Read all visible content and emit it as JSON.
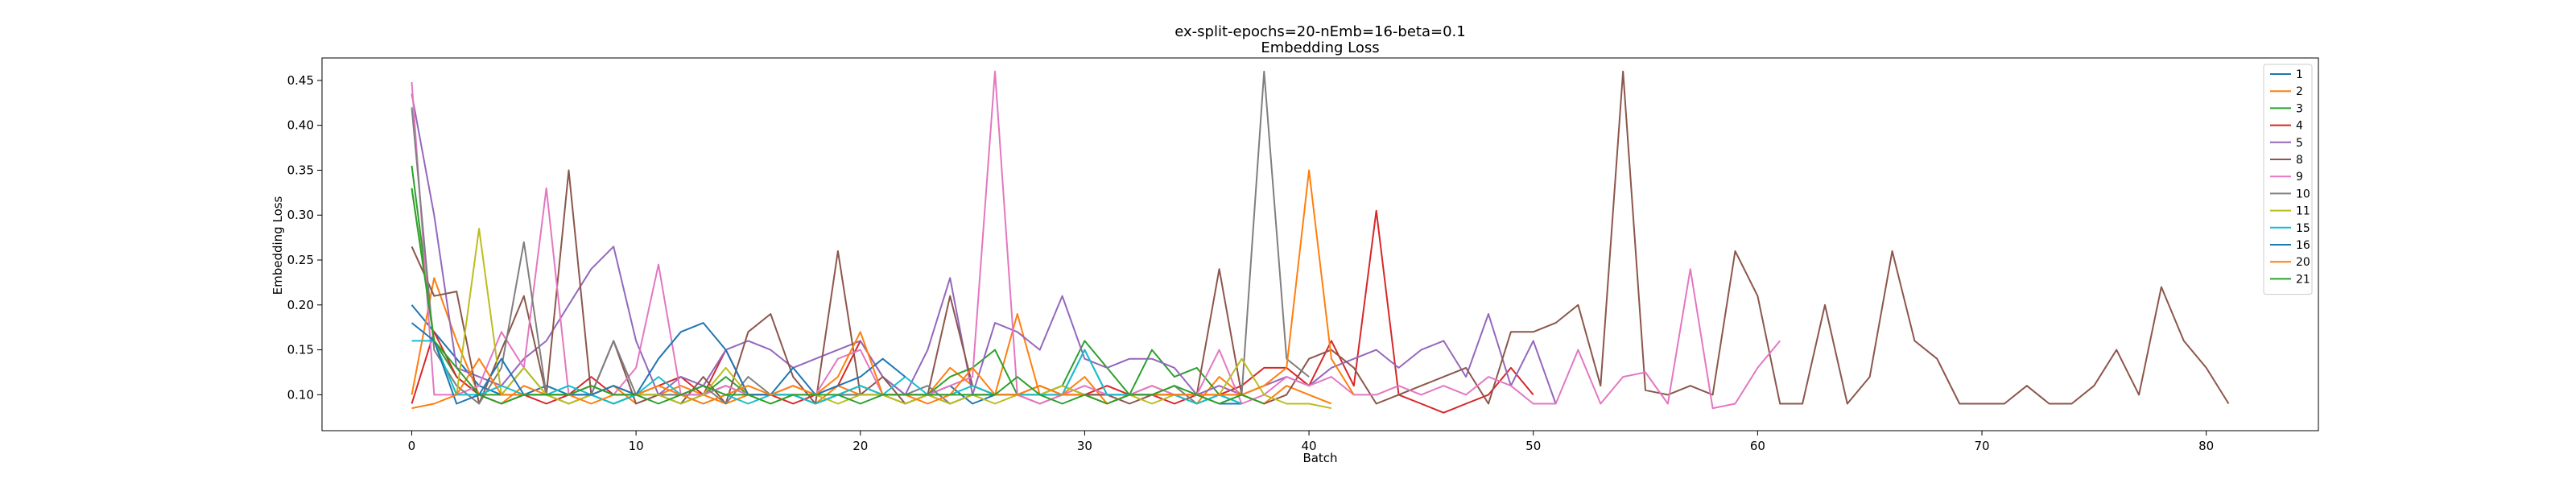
{
  "chart_data": {
    "type": "line",
    "title": "ex-split-epochs=20-nEmb=16-beta=0.1",
    "subtitle": "Embedding Loss",
    "xlabel": "Batch",
    "ylabel": "Embedding Loss",
    "xlim": [
      -4,
      85
    ],
    "ylim": [
      0.06,
      0.475
    ],
    "xticks": [
      0,
      10,
      20,
      30,
      40,
      50,
      60,
      70,
      80
    ],
    "yticks": [
      0.1,
      0.15,
      0.2,
      0.25,
      0.3,
      0.35,
      0.4,
      0.45
    ],
    "ytick_labels": [
      "0.10",
      "0.15",
      "0.20",
      "0.25",
      "0.30",
      "0.35",
      "0.40",
      "0.45"
    ],
    "grid": false,
    "legend_position": "top-right",
    "series": [
      {
        "name": "1",
        "color": "#1f77b4",
        "values": [
          0.2,
          0.17,
          0.14,
          0.11,
          0.1,
          0.1,
          0.11,
          0.1,
          0.1,
          0.09,
          0.1,
          0.1,
          0.1,
          0.1,
          0.11,
          0.1,
          0.1,
          0.1,
          0.09,
          0.1,
          0.1,
          0.1,
          0.09,
          0.1,
          0.11,
          0.09,
          0.1,
          0.1,
          0.1,
          0.11,
          0.1,
          0.1,
          0.1,
          0.1,
          0.1,
          0.1,
          0.09,
          0.09
        ]
      },
      {
        "name": "2",
        "color": "#ff7f0e",
        "values": [
          0.1,
          0.23,
          0.16,
          0.1,
          0.09,
          0.11,
          0.1,
          0.09,
          0.1,
          0.11,
          0.09,
          0.1,
          0.11,
          0.1,
          0.09,
          0.1,
          0.1,
          0.1,
          0.09,
          0.11,
          0.1,
          0.1,
          0.09,
          0.1,
          0.13,
          0.11,
          0.1,
          0.19,
          0.1,
          0.1,
          0.12,
          0.09,
          0.1,
          0.11,
          0.1,
          0.09,
          0.12,
          0.1,
          0.09,
          0.11,
          0.1,
          0.09
        ]
      },
      {
        "name": "3",
        "color": "#2ca02c",
        "values": [
          0.355,
          0.16,
          0.12,
          0.1,
          0.1,
          0.13,
          0.1,
          0.1,
          0.1,
          0.09,
          0.1,
          0.1,
          0.09,
          0.1,
          0.12,
          0.1,
          0.1,
          0.1,
          0.09,
          0.1,
          0.11,
          0.1,
          0.1,
          0.1,
          0.12,
          0.13,
          0.15,
          0.1,
          0.1,
          0.11,
          0.16,
          0.13,
          0.1,
          0.15,
          0.12,
          0.13,
          0.1,
          0.09
        ]
      },
      {
        "name": "4",
        "color": "#d62728",
        "values": [
          0.09,
          0.17,
          0.12,
          0.1,
          0.09,
          0.1,
          0.09,
          0.1,
          0.12,
          0.1,
          0.1,
          0.11,
          0.12,
          0.1,
          0.15,
          0.1,
          0.1,
          0.09,
          0.1,
          0.11,
          0.16,
          0.12,
          0.1,
          0.1,
          0.09,
          0.1,
          0.1,
          0.1,
          0.09,
          0.1,
          0.1,
          0.11,
          0.1,
          0.1,
          0.09,
          0.1,
          0.1,
          0.11,
          0.13,
          0.13,
          0.11,
          0.16,
          0.11,
          0.305,
          0.1,
          0.09,
          0.08,
          0.09,
          0.1,
          0.13,
          0.1
        ]
      },
      {
        "name": "5",
        "color": "#9467bd",
        "values": [
          0.435,
          0.3,
          0.13,
          0.12,
          0.11,
          0.14,
          0.16,
          0.2,
          0.24,
          0.265,
          0.16,
          0.1,
          0.12,
          0.11,
          0.15,
          0.16,
          0.15,
          0.13,
          0.14,
          0.15,
          0.16,
          0.12,
          0.1,
          0.15,
          0.23,
          0.1,
          0.18,
          0.17,
          0.15,
          0.21,
          0.14,
          0.13,
          0.14,
          0.14,
          0.13,
          0.1,
          0.11,
          0.1,
          0.11,
          0.12,
          0.11,
          0.13,
          0.14,
          0.15,
          0.13,
          0.15,
          0.16,
          0.12,
          0.19,
          0.11,
          0.16,
          0.09
        ]
      },
      {
        "name": "8",
        "color": "#8c564b",
        "values": [
          0.265,
          0.21,
          0.215,
          0.09,
          0.15,
          0.21,
          0.1,
          0.35,
          0.1,
          0.16,
          0.09,
          0.1,
          0.09,
          0.12,
          0.09,
          0.17,
          0.19,
          0.12,
          0.09,
          0.26,
          0.1,
          0.12,
          0.09,
          0.1,
          0.21,
          0.11,
          0.1,
          0.1,
          0.11,
          0.1,
          0.1,
          0.1,
          0.09,
          0.1,
          0.1,
          0.1,
          0.24,
          0.1,
          0.09,
          0.1,
          0.14,
          0.15,
          0.13,
          0.09,
          0.1,
          0.11,
          0.12,
          0.13,
          0.09,
          0.17,
          0.17,
          0.18,
          0.2,
          0.11,
          0.46,
          0.105,
          0.1,
          0.11,
          0.1,
          0.26,
          0.21,
          0.09,
          0.09,
          0.2,
          0.09,
          0.12,
          0.26,
          0.16,
          0.14,
          0.09,
          0.09,
          0.09,
          0.11,
          0.09,
          0.09,
          0.11,
          0.15,
          0.1,
          0.22,
          0.16,
          0.13,
          0.09
        ]
      },
      {
        "name": "9",
        "color": "#e377c2",
        "values": [
          0.448,
          0.1,
          0.1,
          0.11,
          0.17,
          0.13,
          0.33,
          0.1,
          0.11,
          0.1,
          0.13,
          0.245,
          0.1,
          0.1,
          0.11,
          0.1,
          0.1,
          0.11,
          0.1,
          0.14,
          0.15,
          0.1,
          0.1,
          0.1,
          0.11,
          0.12,
          0.46,
          0.1,
          0.09,
          0.1,
          0.11,
          0.1,
          0.1,
          0.11,
          0.1,
          0.1,
          0.15,
          0.09,
          0.1,
          0.12,
          0.11,
          0.12,
          0.1,
          0.1,
          0.11,
          0.1,
          0.11,
          0.1,
          0.12,
          0.11,
          0.09,
          0.09,
          0.15,
          0.09,
          0.12,
          0.125,
          0.09,
          0.24,
          0.085,
          0.09,
          0.13,
          0.16
        ]
      },
      {
        "name": "10",
        "color": "#7f7f7f",
        "values": [
          0.42,
          0.15,
          0.11,
          0.09,
          0.13,
          0.27,
          0.1,
          0.09,
          0.1,
          0.16,
          0.1,
          0.1,
          0.1,
          0.11,
          0.09,
          0.12,
          0.1,
          0.1,
          0.09,
          0.1,
          0.1,
          0.1,
          0.1,
          0.11,
          0.09,
          0.1,
          0.1,
          0.1,
          0.1,
          0.1,
          0.15,
          0.1,
          0.1,
          0.1,
          0.11,
          0.09,
          0.1,
          0.1,
          0.46,
          0.14,
          0.12
        ]
      },
      {
        "name": "11",
        "color": "#bcbd22",
        "values": [
          0.33,
          0.16,
          0.1,
          0.285,
          0.1,
          0.13,
          0.1,
          0.09,
          0.1,
          0.11,
          0.1,
          0.1,
          0.09,
          0.1,
          0.13,
          0.1,
          0.09,
          0.1,
          0.1,
          0.09,
          0.1,
          0.1,
          0.09,
          0.1,
          0.09,
          0.1,
          0.09,
          0.1,
          0.1,
          0.11,
          0.1,
          0.09,
          0.1,
          0.09,
          0.1,
          0.09,
          0.1,
          0.14,
          0.1,
          0.09,
          0.09,
          0.085
        ]
      },
      {
        "name": "15",
        "color": "#17becf",
        "values": [
          0.16,
          0.16,
          0.1,
          0.1,
          0.11,
          0.1,
          0.1,
          0.11,
          0.1,
          0.09,
          0.1,
          0.12,
          0.1,
          0.09,
          0.1,
          0.09,
          0.1,
          0.1,
          0.09,
          0.1,
          0.11,
          0.1,
          0.12,
          0.1,
          0.1,
          0.11,
          0.1,
          0.1,
          0.1,
          0.1,
          0.15,
          0.1,
          0.1,
          0.1,
          0.1,
          0.09,
          0.1,
          0.09
        ]
      },
      {
        "name": "16",
        "color": "#1f77b4",
        "values": [
          0.18,
          0.16,
          0.09,
          0.1,
          0.14,
          0.1,
          0.1,
          0.1,
          0.1,
          0.11,
          0.1,
          0.14,
          0.17,
          0.18,
          0.15,
          0.1,
          0.1,
          0.13,
          0.1,
          0.11,
          0.12,
          0.14,
          0.12
        ]
      },
      {
        "name": "20",
        "color": "#ff7f0e",
        "values": [
          0.085,
          0.09,
          0.1,
          0.14,
          0.1,
          0.1,
          0.1,
          0.1,
          0.09,
          0.1,
          0.1,
          0.11,
          0.1,
          0.09,
          0.1,
          0.11,
          0.1,
          0.11,
          0.1,
          0.12,
          0.17,
          0.1,
          0.1,
          0.09,
          0.1,
          0.13,
          0.1,
          0.1,
          0.11,
          0.1,
          0.1,
          0.09,
          0.1,
          0.1,
          0.1,
          0.1,
          0.1,
          0.1,
          0.11,
          0.13,
          0.35,
          0.14,
          0.1
        ]
      },
      {
        "name": "21",
        "color": "#2ca02c",
        "values": [
          0.33,
          0.16,
          0.13,
          0.1,
          0.09,
          0.1,
          0.1,
          0.1,
          0.11,
          0.1,
          0.1,
          0.09,
          0.1,
          0.11,
          0.1,
          0.1,
          0.09,
          0.1,
          0.1,
          0.1,
          0.09,
          0.1,
          0.1,
          0.1,
          0.1,
          0.1,
          0.1,
          0.12,
          0.1,
          0.09,
          0.1,
          0.09,
          0.1,
          0.1,
          0.11,
          0.1,
          0.09,
          0.1,
          0.09
        ]
      }
    ]
  }
}
